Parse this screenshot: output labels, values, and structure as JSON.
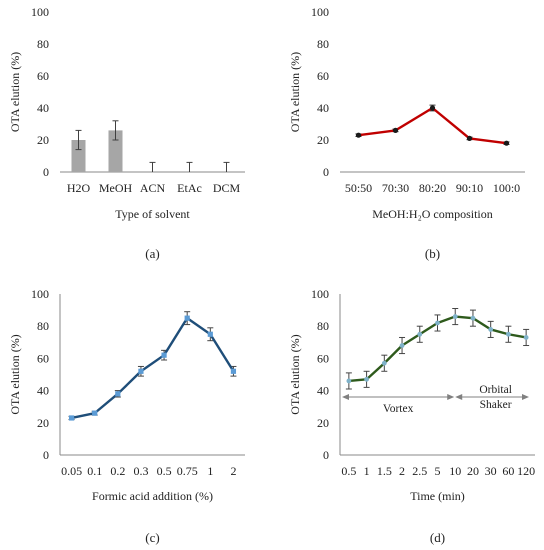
{
  "chart_data": [
    {
      "type": "bar",
      "panel_label": "(a)",
      "categories": [
        "H2O",
        "MeOH",
        "ACN",
        "EtAc",
        "DCM"
      ],
      "values": [
        20,
        26,
        0,
        0,
        0
      ],
      "errors": [
        6,
        6,
        6,
        6,
        6
      ],
      "xlabel": "Type of solvent",
      "ylabel": "OTA elution (%)",
      "ylim": [
        0,
        100
      ],
      "yticks": [
        "0",
        "20",
        "40",
        "60",
        "80",
        "100"
      ],
      "colors": {
        "bar": "#a6a6a6",
        "error": "#404040"
      }
    },
    {
      "type": "line",
      "panel_label": "(b)",
      "categories": [
        "50:50",
        "70:30",
        "80:20",
        "90:10",
        "100:0"
      ],
      "values": [
        23,
        26,
        40,
        21,
        18
      ],
      "errors": [
        0.8,
        0.8,
        1.8,
        0.8,
        0.8
      ],
      "xlabel": "MeOH:H₂O composition",
      "ylabel": "OTA elution (%)",
      "ylim": [
        0,
        100
      ],
      "yticks": [
        "0",
        "20",
        "40",
        "60",
        "80",
        "100"
      ],
      "colors": {
        "line": "#c00000",
        "marker": "#1a1a1a"
      }
    },
    {
      "type": "line",
      "panel_label": "(c)",
      "categories": [
        "0.05",
        "0.1",
        "0.2",
        "0.3",
        "0.5",
        "0.75",
        "1",
        "2"
      ],
      "values": [
        23,
        26,
        38,
        52,
        62,
        85,
        75,
        52
      ],
      "errors": [
        1,
        1.2,
        2,
        3,
        3,
        4,
        4,
        3
      ],
      "xlabel": "Formic acid addition (%)",
      "ylabel": "OTA elution  (%)",
      "ylim": [
        0,
        100
      ],
      "yticks": [
        "0",
        "20",
        "40",
        "60",
        "80",
        "100"
      ],
      "colors": {
        "line": "#1f4e79",
        "marker": "#5b9bd5"
      }
    },
    {
      "type": "line",
      "panel_label": "(d)",
      "categories": [
        "0.5",
        "1",
        "1.5",
        "2",
        "2.5",
        "5",
        "10",
        "20",
        "30",
        "60",
        "120"
      ],
      "values": [
        46,
        47,
        57,
        68,
        75,
        82,
        86,
        85,
        78,
        75,
        73
      ],
      "errors": [
        5,
        5,
        5,
        5,
        5,
        5,
        5,
        5,
        5,
        5,
        5
      ],
      "xlabel": "Time (min)",
      "ylabel": "OTA elution  (%)",
      "ylim": [
        0,
        100
      ],
      "yticks": [
        "0",
        "20",
        "40",
        "60",
        "80",
        "100"
      ],
      "annotations": {
        "vortex": "Vortex",
        "orbital_1": "Orbital",
        "orbital_2": "Shaker"
      },
      "colors": {
        "line": "#2e5a1c",
        "marker": "#7fb2c9",
        "arrow": "#808080"
      }
    }
  ]
}
